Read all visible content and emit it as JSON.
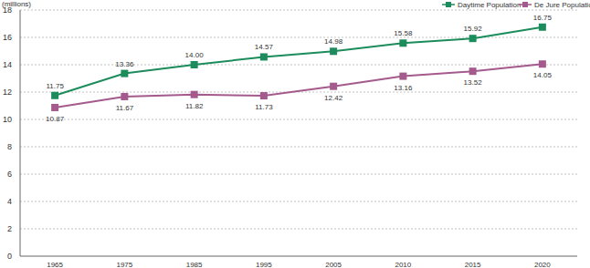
{
  "chart_data": {
    "type": "line",
    "y_label": "(millions)",
    "categories": [
      "1965",
      "1975",
      "1985",
      "1995",
      "2005",
      "2010",
      "2015",
      "2020"
    ],
    "series": [
      {
        "name": "Daytime Population",
        "color": "#1c8c5c",
        "marker": "square",
        "values": [
          11.75,
          13.36,
          14.0,
          14.57,
          14.98,
          15.58,
          15.92,
          16.75
        ],
        "value_labels": [
          "11.75",
          "13.36",
          "14.00",
          "14.57",
          "14.98",
          "15.58",
          "15.92",
          "16.75"
        ]
      },
      {
        "name": "De Jure Population",
        "color": "#a45a8c",
        "marker": "square",
        "values": [
          10.87,
          11.67,
          11.82,
          11.73,
          12.42,
          13.16,
          13.52,
          14.05
        ],
        "value_labels": [
          "10.87",
          "11.67",
          "11.82",
          "11.73",
          "12.42",
          "13.16",
          "13.52",
          "14.05"
        ]
      }
    ],
    "ylim": [
      0,
      18
    ],
    "yticks": [
      0,
      2,
      4,
      6,
      8,
      10,
      12,
      14,
      16,
      18
    ],
    "grid": true,
    "legend": "top-right",
    "data_labels": true
  }
}
